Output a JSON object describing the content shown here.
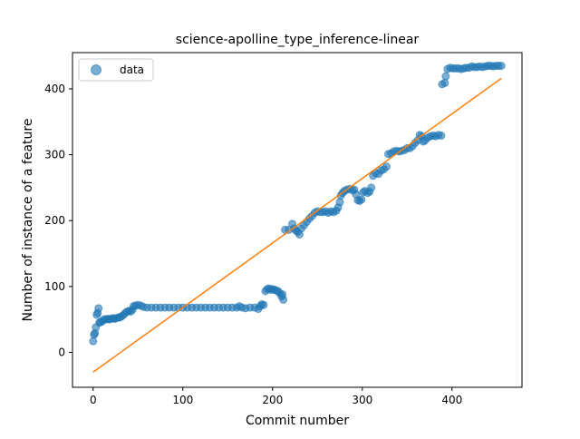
{
  "chart_data": {
    "type": "scatter",
    "title": "science-apolline_type_inference-linear",
    "xlabel": "Commit number",
    "ylabel": "Number of instance of a feature",
    "xlim": [
      -23,
      478
    ],
    "ylim": [
      -53,
      455
    ],
    "x_ticks": [
      0,
      100,
      200,
      300,
      400
    ],
    "y_ticks": [
      0,
      100,
      200,
      300,
      400
    ],
    "x_tick_labels": [
      "0",
      "100",
      "200",
      "300",
      "400"
    ],
    "y_tick_labels": [
      "0",
      "100",
      "200",
      "300",
      "400"
    ],
    "grid": false,
    "legend": {
      "position": "top-left",
      "entries": [
        "data"
      ]
    },
    "colors": {
      "data": "#1f77b4",
      "fit": "#ff7f0e"
    },
    "series": [
      {
        "name": "data",
        "kind": "scatter",
        "points": [
          [
            0,
            17
          ],
          [
            1,
            27
          ],
          [
            2,
            29
          ],
          [
            3,
            38
          ],
          [
            4,
            57
          ],
          [
            5,
            60
          ],
          [
            6,
            67
          ],
          [
            7,
            45
          ],
          [
            8,
            46
          ],
          [
            10,
            47
          ],
          [
            12,
            50
          ],
          [
            14,
            50
          ],
          [
            16,
            51
          ],
          [
            18,
            50
          ],
          [
            20,
            51
          ],
          [
            22,
            52
          ],
          [
            24,
            51
          ],
          [
            26,
            52
          ],
          [
            28,
            53
          ],
          [
            30,
            53
          ],
          [
            32,
            55
          ],
          [
            34,
            57
          ],
          [
            36,
            60
          ],
          [
            38,
            62
          ],
          [
            40,
            63
          ],
          [
            42,
            62
          ],
          [
            44,
            65
          ],
          [
            45,
            70
          ],
          [
            47,
            71
          ],
          [
            50,
            72
          ],
          [
            53,
            71
          ],
          [
            56,
            69
          ],
          [
            60,
            68
          ],
          [
            65,
            68
          ],
          [
            70,
            68
          ],
          [
            75,
            68
          ],
          [
            80,
            68
          ],
          [
            85,
            68
          ],
          [
            90,
            68
          ],
          [
            95,
            68
          ],
          [
            100,
            68
          ],
          [
            105,
            68
          ],
          [
            110,
            68
          ],
          [
            115,
            68
          ],
          [
            120,
            68
          ],
          [
            125,
            68
          ],
          [
            130,
            68
          ],
          [
            135,
            68
          ],
          [
            140,
            68
          ],
          [
            145,
            68
          ],
          [
            150,
            68
          ],
          [
            155,
            68
          ],
          [
            160,
            68
          ],
          [
            163,
            70
          ],
          [
            166,
            68
          ],
          [
            170,
            67
          ],
          [
            175,
            68
          ],
          [
            180,
            68
          ],
          [
            184,
            66
          ],
          [
            186,
            70
          ],
          [
            188,
            73
          ],
          [
            190,
            72
          ],
          [
            192,
            93
          ],
          [
            194,
            96
          ],
          [
            196,
            97
          ],
          [
            198,
            95
          ],
          [
            200,
            96
          ],
          [
            202,
            95
          ],
          [
            204,
            94
          ],
          [
            206,
            93
          ],
          [
            208,
            90
          ],
          [
            210,
            85
          ],
          [
            211,
            88
          ],
          [
            212,
            80
          ],
          [
            214,
            186
          ],
          [
            218,
            186
          ],
          [
            222,
            195
          ],
          [
            224,
            188
          ],
          [
            226,
            185
          ],
          [
            228,
            183
          ],
          [
            230,
            179
          ],
          [
            232,
            188
          ],
          [
            235,
            193
          ],
          [
            238,
            198
          ],
          [
            241,
            203
          ],
          [
            244,
            207
          ],
          [
            247,
            212
          ],
          [
            250,
            214
          ],
          [
            253,
            213
          ],
          [
            256,
            213
          ],
          [
            259,
            214
          ],
          [
            262,
            212
          ],
          [
            265,
            214
          ],
          [
            268,
            213
          ],
          [
            271,
            215
          ],
          [
            273,
            220
          ],
          [
            275,
            228
          ],
          [
            276,
            238
          ],
          [
            278,
            242
          ],
          [
            280,
            245
          ],
          [
            283,
            247
          ],
          [
            286,
            248
          ],
          [
            289,
            246
          ],
          [
            291,
            247
          ],
          [
            293,
            240
          ],
          [
            295,
            231
          ],
          [
            297,
            230
          ],
          [
            299,
            232
          ],
          [
            301,
            243
          ],
          [
            303,
            245
          ],
          [
            306,
            242
          ],
          [
            308,
            244
          ],
          [
            310,
            250
          ],
          [
            312,
            268
          ],
          [
            315,
            272
          ],
          [
            318,
            271
          ],
          [
            321,
            276
          ],
          [
            324,
            278
          ],
          [
            327,
            282
          ],
          [
            329,
            301
          ],
          [
            332,
            302
          ],
          [
            335,
            305
          ],
          [
            338,
            306
          ],
          [
            341,
            305
          ],
          [
            344,
            306
          ],
          [
            347,
            307
          ],
          [
            350,
            310
          ],
          [
            353,
            310
          ],
          [
            356,
            313
          ],
          [
            359,
            318
          ],
          [
            362,
            322
          ],
          [
            364,
            330
          ],
          [
            366,
            328
          ],
          [
            368,
            320
          ],
          [
            370,
            322
          ],
          [
            373,
            326
          ],
          [
            376,
            328
          ],
          [
            379,
            329
          ],
          [
            382,
            328
          ],
          [
            385,
            330
          ],
          [
            388,
            329
          ],
          [
            389,
            407
          ],
          [
            392,
            409
          ],
          [
            393,
            419
          ],
          [
            395,
            430
          ],
          [
            398,
            432
          ],
          [
            401,
            431
          ],
          [
            404,
            431
          ],
          [
            407,
            431
          ],
          [
            410,
            430
          ],
          [
            413,
            431
          ],
          [
            416,
            432
          ],
          [
            419,
            432
          ],
          [
            422,
            434
          ],
          [
            425,
            433
          ],
          [
            428,
            433
          ],
          [
            431,
            434
          ],
          [
            434,
            433
          ],
          [
            437,
            434
          ],
          [
            440,
            435
          ],
          [
            443,
            435
          ],
          [
            446,
            434
          ],
          [
            449,
            435
          ],
          [
            452,
            435
          ],
          [
            455,
            435
          ]
        ]
      },
      {
        "name": "",
        "kind": "line",
        "x": [
          0,
          455
        ],
        "y": [
          -30,
          416
        ]
      }
    ]
  }
}
